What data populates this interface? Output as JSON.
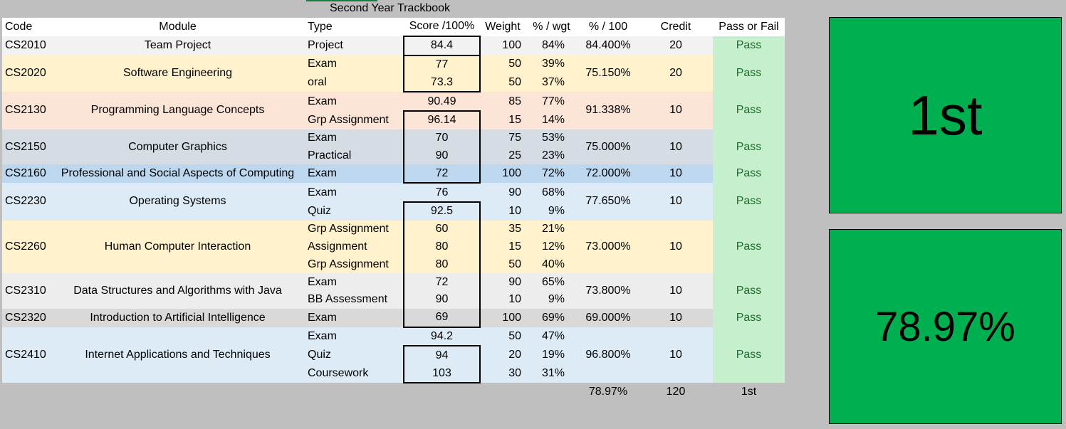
{
  "sheet_title": "Second Year Trackbook",
  "headers": {
    "code": "Code",
    "module": "Module",
    "type": "Type",
    "score": "Score /100%",
    "weight": "Weight",
    "pct_wgt": "% / wgt",
    "pct_100": "% / 100",
    "credit": "Credit",
    "pass_fail": "Pass or Fail"
  },
  "modules": [
    {
      "code": "CS2010",
      "name": "Team Project",
      "color": "#f2f2f2",
      "pct": "84.400%",
      "credit": "20",
      "result": "Pass",
      "components": [
        {
          "type": "Project",
          "score": "84.4",
          "weight": "100",
          "pw": "84%"
        }
      ]
    },
    {
      "code": "CS2020",
      "name": "Software Engineering",
      "color": "#fff2cc",
      "pct": "75.150%",
      "credit": "20",
      "result": "Pass",
      "components": [
        {
          "type": "Exam",
          "score": "77",
          "weight": "50",
          "pw": "39%"
        },
        {
          "type": "oral",
          "score": "73.3",
          "weight": "50",
          "pw": "37%"
        }
      ]
    },
    {
      "code": "CS2130",
      "name": "Programming Language Concepts",
      "color": "#fce4d6",
      "pct": "91.338%",
      "credit": "10",
      "result": "Pass",
      "components": [
        {
          "type": "Exam",
          "score": "90.49",
          "weight": "85",
          "pw": "77%"
        },
        {
          "type": "Grp Assignment",
          "score": "96.14",
          "weight": "15",
          "pw": "14%"
        }
      ]
    },
    {
      "code": "CS2150",
      "name": "Computer Graphics",
      "color": "#d6dce4",
      "pct": "75.000%",
      "credit": "10",
      "result": "Pass",
      "components": [
        {
          "type": "Exam",
          "score": "70",
          "weight": "75",
          "pw": "53%"
        },
        {
          "type": "Practical",
          "score": "90",
          "weight": "25",
          "pw": "23%"
        }
      ]
    },
    {
      "code": "CS2160",
      "name": "Professional and Social Aspects of Computing",
      "color": "#bdd7ee",
      "pct": "72.000%",
      "credit": "10",
      "result": "Pass",
      "components": [
        {
          "type": "Exam",
          "score": "72",
          "weight": "100",
          "pw": "72%"
        }
      ]
    },
    {
      "code": "CS2230",
      "name": "Operating Systems",
      "color": "#ddebf7",
      "pct": "77.650%",
      "credit": "10",
      "result": "Pass",
      "components": [
        {
          "type": "Exam",
          "score": "76",
          "weight": "90",
          "pw": "68%"
        },
        {
          "type": "Quiz",
          "score": "92.5",
          "weight": "10",
          "pw": "9%"
        }
      ]
    },
    {
      "code": "CS2260",
      "name": "Human Computer Interaction",
      "color": "#fff2cc",
      "pct": "73.000%",
      "credit": "10",
      "result": "Pass",
      "components": [
        {
          "type": "Grp Assignment",
          "score": "60",
          "weight": "35",
          "pw": "21%"
        },
        {
          "type": "Assignment",
          "score": "80",
          "weight": "15",
          "pw": "12%"
        },
        {
          "type": "Grp Assignment",
          "score": "80",
          "weight": "50",
          "pw": "40%"
        }
      ]
    },
    {
      "code": "CS2310",
      "name": "Data Structures and Algorithms with Java",
      "color": "#ededed",
      "pct": "73.800%",
      "credit": "10",
      "result": "Pass",
      "components": [
        {
          "type": "Exam",
          "score": "72",
          "weight": "90",
          "pw": "65%"
        },
        {
          "type": "BB Assessment",
          "score": "90",
          "weight": "10",
          "pw": "9%"
        }
      ]
    },
    {
      "code": "CS2320",
      "name": "Introduction to Artificial Intelligence",
      "color": "#d9d9d9",
      "pct": "69.000%",
      "credit": "10",
      "result": "Pass",
      "components": [
        {
          "type": "Exam",
          "score": "69",
          "weight": "100",
          "pw": "69%"
        }
      ]
    },
    {
      "code": "CS2410",
      "name": "Internet Applications and Techniques",
      "color": "#ddebf7",
      "pct": "96.800%",
      "credit": "10",
      "result": "Pass",
      "components": [
        {
          "type": "Exam",
          "score": "94.2",
          "weight": "50",
          "pw": "47%"
        },
        {
          "type": "Quiz",
          "score": "94",
          "weight": "20",
          "pw": "19%"
        },
        {
          "type": "Coursework",
          "score": "103",
          "weight": "30",
          "pw": "31%"
        }
      ]
    }
  ],
  "totals": {
    "average": "78.97%",
    "credit": "120",
    "classification": "1st"
  },
  "panels": {
    "classification": "1st",
    "average": "78.97%"
  },
  "colors": {
    "panel_green": "#00b050",
    "pass_fill": "#c6efce",
    "pass_text": "#1e6b2a"
  }
}
